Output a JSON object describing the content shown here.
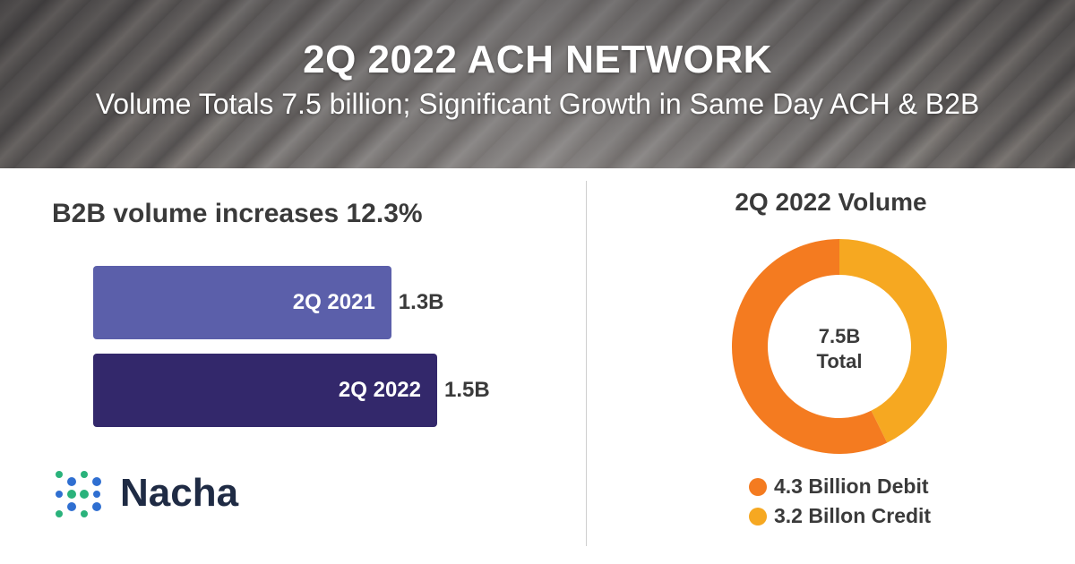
{
  "banner": {
    "title": "2Q 2022 ACH NETWORK",
    "subtitle": "Volume Totals 7.5 billion; Significant Growth in Same Day ACH & B2B"
  },
  "logo": {
    "name": "Nacha"
  },
  "chart_data": [
    {
      "type": "bar",
      "title": "B2B volume increases 12.3%",
      "categories": [
        "2Q 2021",
        "2Q 2022"
      ],
      "values": [
        1.3,
        1.5
      ],
      "value_labels": [
        "1.3B",
        "1.5B"
      ],
      "unit": "billion",
      "colors": [
        "#5b5faa",
        "#33286b"
      ]
    },
    {
      "type": "pie",
      "title": "2Q 2022 Volume",
      "center_label_line1": "7.5B",
      "center_label_line2": "Total",
      "slices": [
        {
          "name": "4.3 Billion Debit",
          "value": 4.3,
          "color": "#f47b20"
        },
        {
          "name": "3.2 Billon Credit",
          "value": 3.2,
          "color": "#f6a821"
        }
      ]
    }
  ]
}
